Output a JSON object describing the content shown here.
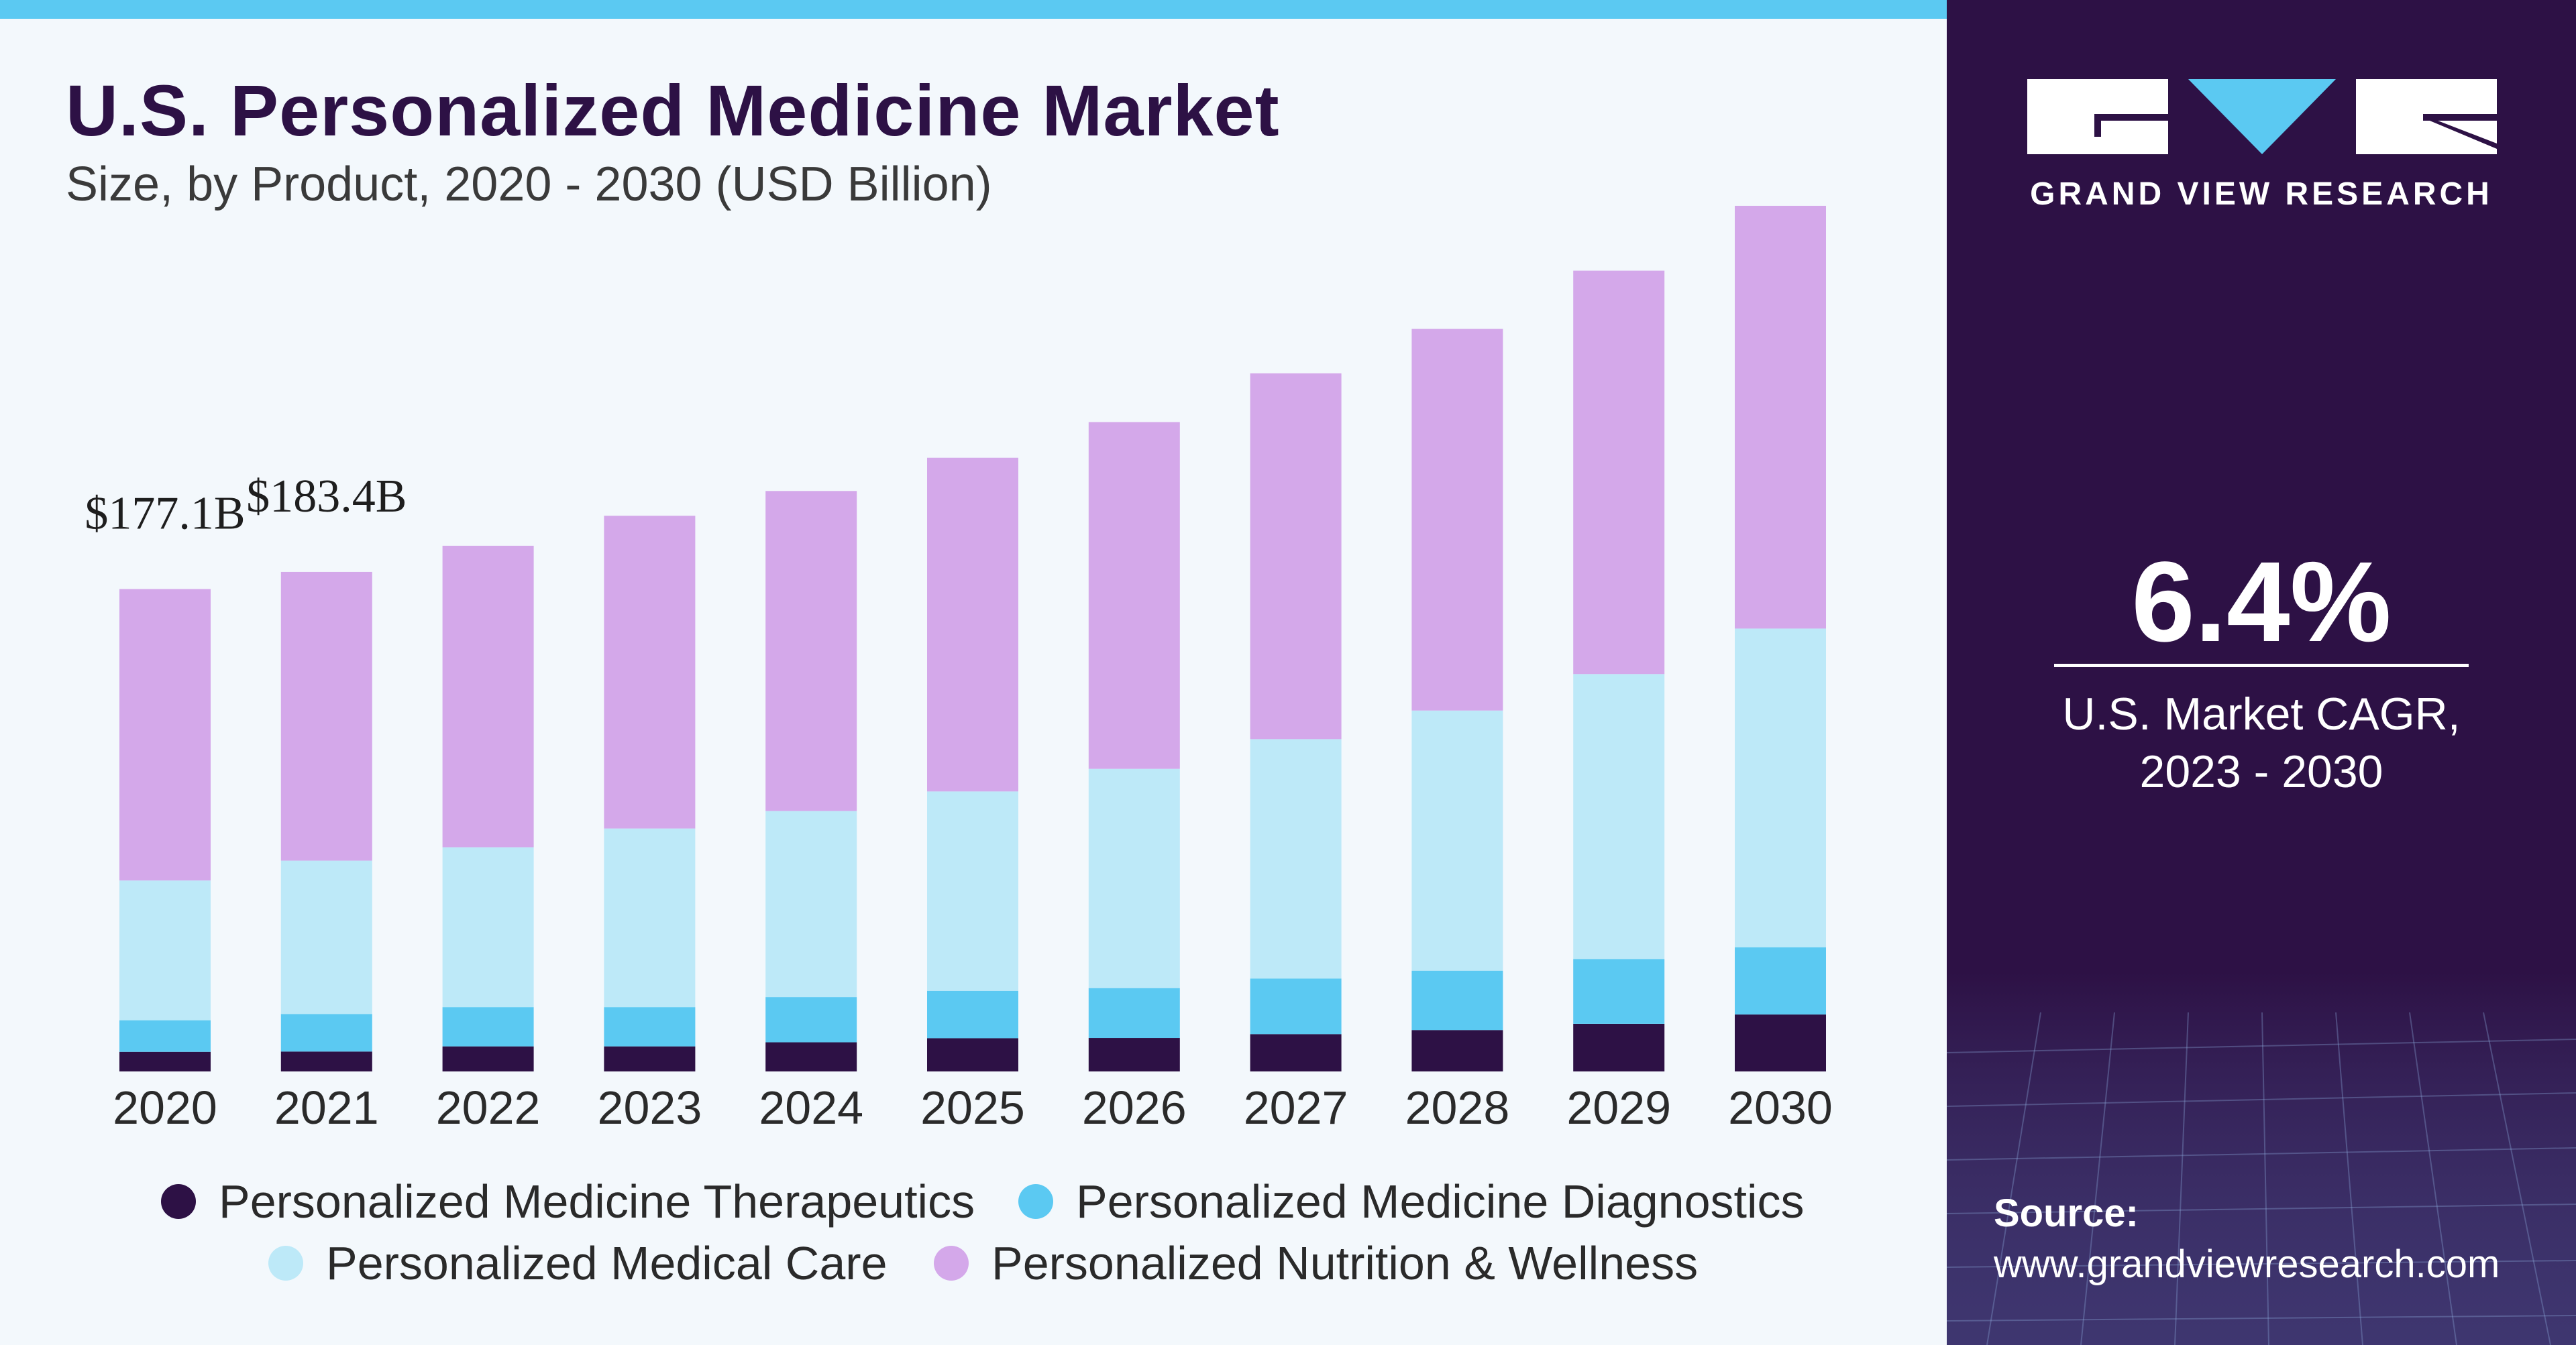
{
  "header": {
    "title": "U.S. Personalized Medicine Market",
    "subtitle": "Size, by Product, 2020 - 2030 (USD Billion)"
  },
  "brand": {
    "name": "GRAND VIEW RESEARCH",
    "cagr_value": "6.4%",
    "cagr_label_line1": "U.S. Market CAGR,",
    "cagr_label_line2": "2023 - 2030",
    "source_label": "Source:",
    "source_url": "www.grandviewresearch.com"
  },
  "colors": {
    "therapeutics": "#2d1145",
    "diagnostics": "#5bc9f2",
    "medical_care": "#bde9f8",
    "nutrition": "#d4a8ea",
    "panel": "#2d1145",
    "background": "#f3f8fc"
  },
  "chart_data": {
    "type": "bar",
    "stacked": true,
    "title": "U.S. Personalized Medicine Market",
    "subtitle": "Size, by Product, 2020 - 2030 (USD Billion)",
    "xlabel": "",
    "ylabel": "USD Billion",
    "ylim": [
      0,
      320
    ],
    "categories": [
      "2020",
      "2021",
      "2022",
      "2023",
      "2024",
      "2025",
      "2026",
      "2027",
      "2028",
      "2029",
      "2030"
    ],
    "series": [
      {
        "name": "Personalized Medicine Therapeutics",
        "color": "#2d1145",
        "values": [
          7.2,
          7.3,
          9.2,
          9.2,
          10.7,
          12.2,
          12.3,
          13.7,
          15.2,
          17.5,
          20.9
        ]
      },
      {
        "name": "Personalized Medicine Diagnostics",
        "color": "#5bc9f2",
        "values": [
          11.6,
          13.8,
          14.4,
          14.4,
          16.6,
          17.4,
          18.3,
          20.4,
          21.8,
          23.8,
          24.7
        ]
      },
      {
        "name": "Personalized Medical Care",
        "color": "#bde9f8",
        "values": [
          51.3,
          56.3,
          58.7,
          65.6,
          68.3,
          73.2,
          80.5,
          87.9,
          95.5,
          104.6,
          117.0
        ]
      },
      {
        "name": "Personalized Nutrition & Wellness",
        "color": "#d4a8ea",
        "values": [
          107.0,
          106.0,
          110.7,
          114.8,
          117.5,
          122.5,
          127.3,
          134.3,
          140.1,
          148.1,
          155.2
        ]
      }
    ],
    "data_labels": [
      {
        "category": "2020",
        "text": "$177.1B"
      },
      {
        "category": "2021",
        "text": "$183.4B"
      }
    ],
    "legend": [
      {
        "label": "Personalized Medicine Therapeutics",
        "color": "#2d1145"
      },
      {
        "label": "Personalized Medicine Diagnostics",
        "color": "#5bc9f2"
      },
      {
        "label": "Personalized Medical Care",
        "color": "#bde9f8"
      },
      {
        "label": "Personalized Nutrition & Wellness",
        "color": "#d4a8ea"
      }
    ],
    "legend_position": "bottom",
    "grid": false
  }
}
